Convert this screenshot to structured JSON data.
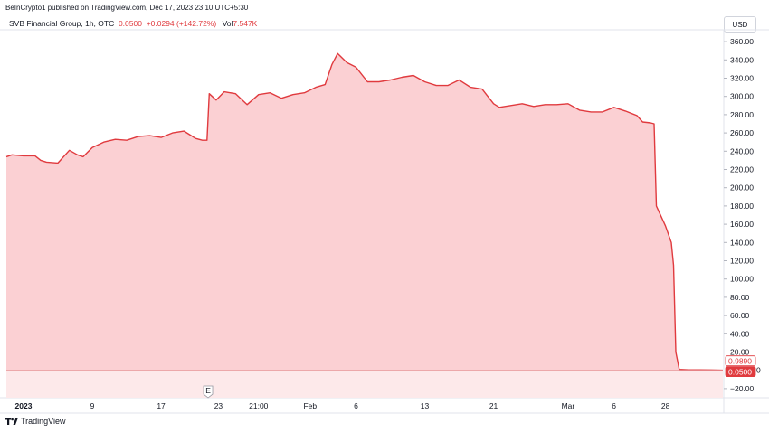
{
  "header": {
    "published": "BeInCrypto1 published on TradingView.com, Dec 17, 2023 23:10 UTC+5:30"
  },
  "legend": {
    "symbol": "SVB Financial Group, 1h, OTC",
    "price": "0.0500",
    "change": "+0.0294 (+142.72%)",
    "volume_label": "Vol",
    "volume": "7.547K"
  },
  "currency_button": "USD",
  "footer": {
    "brand": "TradingView"
  },
  "colors": {
    "line": "#e03a3e",
    "fill": "#fbd0d3",
    "zero_line": "#e89a9d"
  },
  "chart_data": {
    "type": "area",
    "y_axis_side": "right",
    "ylim": [
      -30,
      370
    ],
    "y_ticks": [
      -20,
      20,
      40,
      60,
      80,
      100,
      120,
      140,
      160,
      180,
      200,
      220,
      240,
      260,
      280,
      300,
      320,
      340,
      360
    ],
    "y_tick_labels": [
      "−20.00",
      "20.00",
      "40.00",
      "60.00",
      "80.00",
      "100.00",
      "120.00",
      "140.00",
      "160.00",
      "180.00",
      "200.00",
      "220.00",
      "240.00",
      "260.00",
      "280.00",
      "300.00",
      "320.00",
      "340.00",
      "360.00"
    ],
    "x_ticks": [
      {
        "x": 0,
        "label": "2023",
        "bold": true
      },
      {
        "x": 6,
        "label": "9"
      },
      {
        "x": 12,
        "label": "17"
      },
      {
        "x": 17,
        "label": "23"
      },
      {
        "x": 20.5,
        "label": "21:00"
      },
      {
        "x": 25,
        "label": "Feb"
      },
      {
        "x": 29,
        "label": "6"
      },
      {
        "x": 35,
        "label": "13"
      },
      {
        "x": 41,
        "label": "21"
      },
      {
        "x": 47.5,
        "label": "Mar"
      },
      {
        "x": 51.5,
        "label": "6"
      },
      {
        "x": 56,
        "label": "28"
      }
    ],
    "event_marker": {
      "x": 16.1,
      "label": "E"
    },
    "price_labels": [
      {
        "value": 0.989,
        "label": "0.9890",
        "style": "outline"
      },
      {
        "value": 0.05,
        "label": "0.0500",
        "style": "filled"
      }
    ],
    "zero_line_label": "0",
    "x_range": [
      -1.5,
      61
    ],
    "points": [
      [
        -1.5,
        234
      ],
      [
        -1,
        236
      ],
      [
        0,
        235
      ],
      [
        1,
        235
      ],
      [
        1.5,
        230
      ],
      [
        2,
        228
      ],
      [
        3,
        227
      ],
      [
        4,
        241
      ],
      [
        4.7,
        236
      ],
      [
        5.2,
        234
      ],
      [
        6,
        244
      ],
      [
        7,
        250
      ],
      [
        8,
        253
      ],
      [
        9,
        252
      ],
      [
        10,
        256
      ],
      [
        11,
        257
      ],
      [
        12,
        255
      ],
      [
        13,
        260
      ],
      [
        14,
        262
      ],
      [
        14.5,
        258
      ],
      [
        15,
        254
      ],
      [
        15.6,
        252
      ],
      [
        16,
        252
      ],
      [
        16.2,
        303
      ],
      [
        16.8,
        296
      ],
      [
        17.5,
        305
      ],
      [
        18.5,
        303
      ],
      [
        19.5,
        291
      ],
      [
        20.5,
        302
      ],
      [
        21.5,
        304
      ],
      [
        22.5,
        298
      ],
      [
        23.5,
        302
      ],
      [
        24.5,
        304
      ],
      [
        25.5,
        310
      ],
      [
        26.3,
        313
      ],
      [
        26.9,
        335
      ],
      [
        27.4,
        347
      ],
      [
        28.2,
        337
      ],
      [
        29,
        332
      ],
      [
        30,
        316
      ],
      [
        31,
        316
      ],
      [
        32,
        318
      ],
      [
        33,
        321
      ],
      [
        34,
        323
      ],
      [
        35,
        316
      ],
      [
        36,
        312
      ],
      [
        37,
        312
      ],
      [
        38,
        318
      ],
      [
        39,
        310
      ],
      [
        40,
        308
      ],
      [
        40.5,
        300
      ],
      [
        41,
        292
      ],
      [
        41.5,
        288
      ],
      [
        42.5,
        290
      ],
      [
        43.5,
        292
      ],
      [
        44.5,
        289
      ],
      [
        45.5,
        291
      ],
      [
        46.5,
        291
      ],
      [
        47.5,
        292
      ],
      [
        48.5,
        285
      ],
      [
        49.5,
        283
      ],
      [
        50.5,
        283
      ],
      [
        51.5,
        288
      ],
      [
        52.5,
        284
      ],
      [
        53.5,
        279
      ],
      [
        54,
        272
      ],
      [
        54.7,
        271
      ],
      [
        55,
        270
      ],
      [
        55.2,
        180
      ],
      [
        56,
        158
      ],
      [
        56.5,
        140
      ],
      [
        56.7,
        115
      ],
      [
        56.9,
        20
      ],
      [
        57.2,
        1.0
      ],
      [
        58,
        0.5
      ],
      [
        59,
        0.5
      ],
      [
        60,
        0.4
      ],
      [
        61,
        0.05
      ]
    ]
  }
}
